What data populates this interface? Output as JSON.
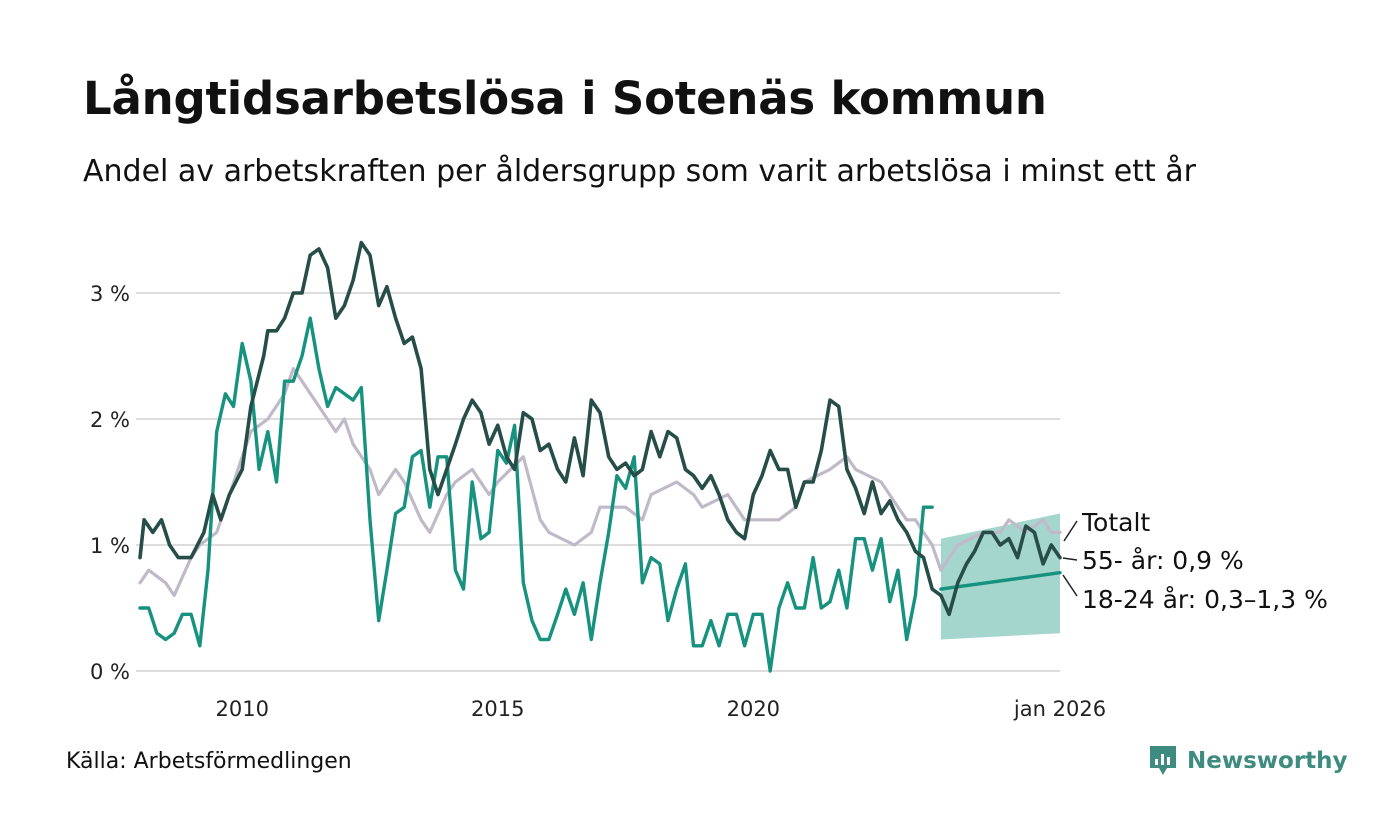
{
  "title": "Långtidsarbetslösa i Sotenäs kommun",
  "subtitle": "Andel av arbetskraften per åldersgrupp som varit arbetslösa i minst ett år",
  "source": "Källa: Arbetsförmedlingen",
  "brand": "Newsworthy",
  "colors": {
    "total": "#c0bac8",
    "age55": "#264d48",
    "age18_24": "#16927f",
    "band": "#9fd4ca",
    "grid": "#dddddd",
    "brand": "#3d8c7f"
  },
  "chart_data": {
    "type": "line",
    "title": "Långtidsarbetslösa i Sotenäs kommun",
    "subtitle": "Andel av arbetskraften per åldersgrupp som varit arbetslösa i minst ett år",
    "xlabel": "",
    "ylabel": "",
    "xlim": [
      2008.0,
      2026.0
    ],
    "ylim": [
      0,
      3.5
    ],
    "grid": true,
    "yticks": [
      {
        "value": 0,
        "label": "0 %"
      },
      {
        "value": 1,
        "label": "1 %"
      },
      {
        "value": 2,
        "label": "2 %"
      },
      {
        "value": 3,
        "label": "3 %"
      }
    ],
    "xticks": [
      {
        "value": 2010,
        "label": "2010"
      },
      {
        "value": 2015,
        "label": "2015"
      },
      {
        "value": 2020,
        "label": "2020"
      },
      {
        "value": 2026,
        "label": "jan 2026"
      }
    ],
    "series": [
      {
        "key": "total",
        "name": "Totalt",
        "end_label": "Totalt",
        "x": [
          2008.0,
          2008.17,
          2008.5,
          2008.67,
          2009.0,
          2009.17,
          2009.5,
          2009.67,
          2010.0,
          2010.17,
          2010.5,
          2010.83,
          2011.0,
          2011.17,
          2011.5,
          2011.83,
          2012.0,
          2012.17,
          2012.5,
          2012.67,
          2013.0,
          2013.17,
          2013.5,
          2013.67,
          2014.0,
          2014.17,
          2014.5,
          2014.83,
          2015.0,
          2015.5,
          2015.83,
          2016.0,
          2016.5,
          2016.83,
          2017.0,
          2017.5,
          2017.83,
          2018.0,
          2018.5,
          2018.83,
          2019.0,
          2019.5,
          2019.83,
          2020.0,
          2020.5,
          2020.83,
          2021.0,
          2021.5,
          2021.83,
          2022.0,
          2022.5,
          2022.83,
          2023.0,
          2023.17,
          2023.33,
          2023.5,
          2023.67,
          2024.0,
          2024.5,
          2024.83,
          2025.0,
          2025.33,
          2025.67,
          2025.83,
          2026.0
        ],
        "values": [
          0.7,
          0.8,
          0.7,
          0.6,
          0.9,
          1.0,
          1.1,
          1.3,
          1.7,
          1.9,
          2.0,
          2.2,
          2.4,
          2.3,
          2.1,
          1.9,
          2.0,
          1.8,
          1.6,
          1.4,
          1.6,
          1.5,
          1.2,
          1.1,
          1.4,
          1.5,
          1.6,
          1.4,
          1.5,
          1.7,
          1.2,
          1.1,
          1.0,
          1.1,
          1.3,
          1.3,
          1.2,
          1.4,
          1.5,
          1.4,
          1.3,
          1.4,
          1.2,
          1.2,
          1.2,
          1.3,
          1.5,
          1.6,
          1.7,
          1.6,
          1.5,
          1.3,
          1.2,
          1.2,
          1.1,
          1.0,
          0.8,
          1.0,
          1.1,
          1.1,
          1.2,
          1.1,
          1.2,
          1.1,
          1.1
        ]
      },
      {
        "key": "age55",
        "name": "55- år",
        "end_label": "55- år: 0,9 %",
        "x": [
          2008.0,
          2008.08,
          2008.25,
          2008.42,
          2008.58,
          2008.75,
          2009.0,
          2009.25,
          2009.42,
          2009.58,
          2009.75,
          2010.0,
          2010.17,
          2010.42,
          2010.5,
          2010.67,
          2010.83,
          2011.0,
          2011.17,
          2011.33,
          2011.5,
          2011.67,
          2011.83,
          2012.0,
          2012.17,
          2012.33,
          2012.5,
          2012.67,
          2012.83,
          2013.0,
          2013.17,
          2013.33,
          2013.5,
          2013.67,
          2013.83,
          2014.0,
          2014.17,
          2014.33,
          2014.5,
          2014.67,
          2014.83,
          2015.0,
          2015.17,
          2015.33,
          2015.5,
          2015.67,
          2015.83,
          2016.0,
          2016.17,
          2016.33,
          2016.5,
          2016.67,
          2016.83,
          2017.0,
          2017.17,
          2017.33,
          2017.5,
          2017.67,
          2017.83,
          2018.0,
          2018.17,
          2018.33,
          2018.5,
          2018.67,
          2018.83,
          2019.0,
          2019.17,
          2019.33,
          2019.5,
          2019.67,
          2019.83,
          2020.0,
          2020.17,
          2020.33,
          2020.5,
          2020.67,
          2020.83,
          2021.0,
          2021.17,
          2021.33,
          2021.5,
          2021.67,
          2021.83,
          2022.0,
          2022.17,
          2022.33,
          2022.5,
          2022.67,
          2022.83,
          2023.0,
          2023.17,
          2023.33,
          2023.5,
          2023.67,
          2023.83,
          2024.0,
          2024.17,
          2024.33,
          2024.5,
          2024.67,
          2024.83,
          2025.0,
          2025.17,
          2025.33,
          2025.5,
          2025.67,
          2025.83,
          2026.0
        ],
        "values": [
          0.9,
          1.2,
          1.1,
          1.2,
          1.0,
          0.9,
          0.9,
          1.1,
          1.4,
          1.2,
          1.4,
          1.6,
          2.1,
          2.5,
          2.7,
          2.7,
          2.8,
          3.0,
          3.0,
          3.3,
          3.35,
          3.2,
          2.8,
          2.9,
          3.1,
          3.4,
          3.3,
          2.9,
          3.05,
          2.8,
          2.6,
          2.65,
          2.4,
          1.6,
          1.4,
          1.6,
          1.8,
          2.0,
          2.15,
          2.05,
          1.8,
          1.95,
          1.7,
          1.6,
          2.05,
          2.0,
          1.75,
          1.8,
          1.6,
          1.5,
          1.85,
          1.55,
          2.15,
          2.05,
          1.7,
          1.6,
          1.65,
          1.55,
          1.6,
          1.9,
          1.7,
          1.9,
          1.85,
          1.6,
          1.55,
          1.45,
          1.55,
          1.4,
          1.2,
          1.1,
          1.05,
          1.4,
          1.55,
          1.75,
          1.6,
          1.6,
          1.3,
          1.5,
          1.5,
          1.75,
          2.15,
          2.1,
          1.6,
          1.45,
          1.25,
          1.5,
          1.25,
          1.35,
          1.2,
          1.1,
          0.95,
          0.9,
          0.65,
          0.6,
          0.45,
          0.7,
          0.85,
          0.95,
          1.1,
          1.1,
          1.0,
          1.05,
          0.9,
          1.15,
          1.1,
          0.85,
          1.0,
          0.9
        ]
      },
      {
        "key": "age18_24",
        "name": "18-24 år",
        "end_label": "18-24 år: 0,3–1,3 %",
        "x": [
          2008.0,
          2008.17,
          2008.33,
          2008.5,
          2008.67,
          2008.83,
          2009.0,
          2009.17,
          2009.33,
          2009.5,
          2009.67,
          2009.83,
          2010.0,
          2010.17,
          2010.33,
          2010.5,
          2010.67,
          2010.83,
          2011.0,
          2011.17,
          2011.33,
          2011.5,
          2011.67,
          2011.83,
          2012.0,
          2012.17,
          2012.33,
          2012.5,
          2012.67,
          2012.83,
          2013.0,
          2013.17,
          2013.33,
          2013.5,
          2013.67,
          2013.83,
          2014.0,
          2014.17,
          2014.33,
          2014.5,
          2014.67,
          2014.83,
          2015.0,
          2015.17,
          2015.33,
          2015.5,
          2015.67,
          2015.83,
          2016.0,
          2016.17,
          2016.33,
          2016.5,
          2016.67,
          2016.83,
          2017.0,
          2017.17,
          2017.33,
          2017.5,
          2017.67,
          2017.83,
          2018.0,
          2018.17,
          2018.33,
          2018.5,
          2018.67,
          2018.83,
          2019.0,
          2019.17,
          2019.33,
          2019.5,
          2019.67,
          2019.83,
          2020.0,
          2020.17,
          2020.33,
          2020.5,
          2020.67,
          2020.83,
          2021.0,
          2021.17,
          2021.33,
          2021.5,
          2021.67,
          2021.83,
          2022.0,
          2022.17,
          2022.33,
          2022.5,
          2022.67,
          2022.83,
          2023.0,
          2023.17,
          2023.33,
          2023.5
        ],
        "values": [
          0.5,
          0.5,
          0.3,
          0.25,
          0.3,
          0.45,
          0.45,
          0.2,
          0.8,
          1.9,
          2.2,
          2.1,
          2.6,
          2.3,
          1.6,
          1.9,
          1.5,
          2.3,
          2.3,
          2.5,
          2.8,
          2.4,
          2.1,
          2.25,
          2.2,
          2.15,
          2.25,
          1.2,
          0.4,
          0.8,
          1.25,
          1.3,
          1.7,
          1.75,
          1.3,
          1.7,
          1.7,
          0.8,
          0.65,
          1.5,
          1.05,
          1.1,
          1.75,
          1.65,
          1.95,
          0.7,
          0.4,
          0.25,
          0.25,
          0.45,
          0.65,
          0.45,
          0.7,
          0.25,
          0.7,
          1.1,
          1.55,
          1.45,
          1.7,
          0.7,
          0.9,
          0.85,
          0.4,
          0.65,
          0.85,
          0.2,
          0.2,
          0.4,
          0.2,
          0.45,
          0.45,
          0.2,
          0.45,
          0.45,
          0.0,
          0.5,
          0.7,
          0.5,
          0.5,
          0.9,
          0.5,
          0.55,
          0.8,
          0.5,
          1.05,
          1.05,
          0.8,
          1.05,
          0.55,
          0.8,
          0.25,
          0.6,
          1.3,
          1.3
        ]
      },
      {
        "key": "age18_24_forecast",
        "name": "18-24 år (intervall)",
        "x": [
          2023.67,
          2026.0
        ],
        "values": [
          0.65,
          0.78
        ],
        "lower": [
          0.25,
          0.3
        ],
        "upper": [
          1.05,
          1.25
        ]
      }
    ]
  }
}
